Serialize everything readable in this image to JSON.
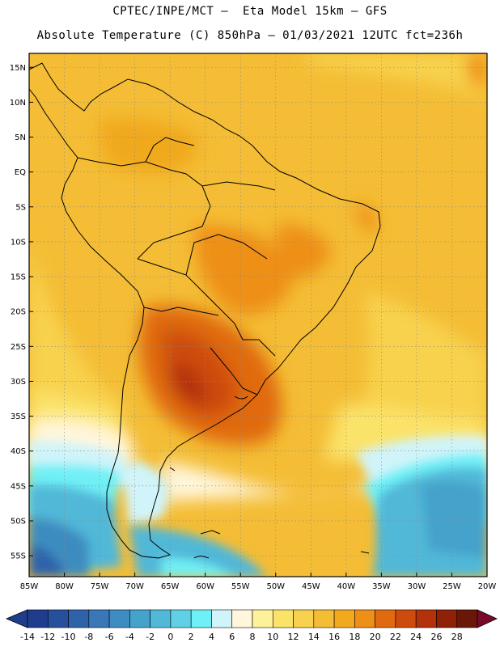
{
  "header": {
    "line1": "CPTEC/INPE/MCT –  Eta Model 15km – GFS",
    "line2": "Absolute Temperature (C) 850hPa – 01/03/2021 12UTC fct=236h"
  },
  "map": {
    "lat_labels": [
      "15N",
      "10N",
      "5N",
      "EQ",
      "5S",
      "10S",
      "15S",
      "20S",
      "25S",
      "30S",
      "35S",
      "40S",
      "45S",
      "50S",
      "55S"
    ],
    "lon_labels": [
      "85W",
      "80W",
      "75W",
      "70W",
      "65W",
      "60W",
      "55W",
      "50W",
      "45W",
      "40W",
      "35W",
      "30W",
      "25W",
      "20W"
    ],
    "lat_range": [
      17,
      -58
    ],
    "lon_range": [
      -85,
      -20
    ]
  },
  "colorbar": {
    "labels": [
      "-14",
      "-12",
      "-10",
      "-8",
      "-6",
      "-4",
      "-2",
      "0",
      "2",
      "4",
      "6",
      "8",
      "10",
      "12",
      "14",
      "16",
      "18",
      "20",
      "22",
      "24",
      "26",
      "28"
    ],
    "colors": [
      "#1f3d8c",
      "#27509c",
      "#2e63aa",
      "#3a77b6",
      "#3e8cc0",
      "#45a2cb",
      "#51b8d8",
      "#5fd0e6",
      "#6ff0f6",
      "#d0f4fa",
      "#fff6dc",
      "#fdf29a",
      "#fbe36a",
      "#f8d24e",
      "#f4bd35",
      "#f1a91e",
      "#ee8f17",
      "#e06a10",
      "#cd4b0c",
      "#b3320a",
      "#8f2108",
      "#6b1707"
    ]
  },
  "colors": {
    "frame": "#000000",
    "border": "#000000",
    "grid": "#888888"
  }
}
